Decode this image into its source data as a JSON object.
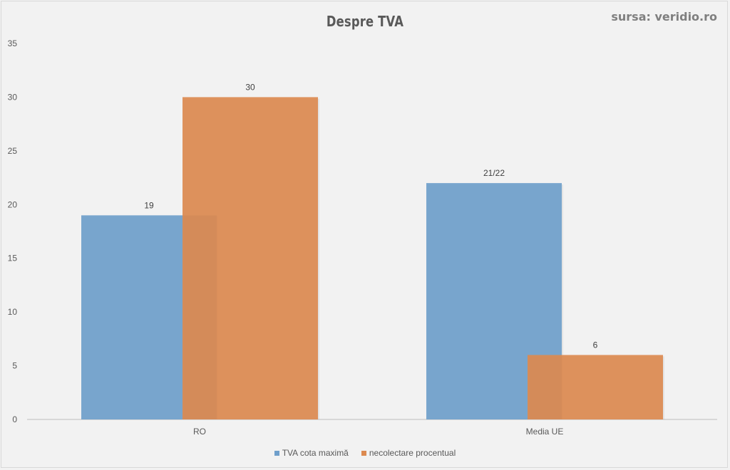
{
  "chart_data": {
    "type": "bar",
    "title": "Despre TVA",
    "source": "sursa: veridio.ro",
    "categories": [
      "RO",
      "Media UE"
    ],
    "series": [
      {
        "name": "TVA cota maximă",
        "values": [
          19,
          22
        ],
        "labels": [
          "19",
          "21/22"
        ],
        "color": "#6f9fcb"
      },
      {
        "name": "necolectare procentual",
        "values": [
          30,
          6
        ],
        "labels": [
          "30",
          "6"
        ],
        "color": "#dc8a50"
      }
    ],
    "ylim": [
      0,
      35
    ],
    "yticks": [
      0,
      5,
      10,
      15,
      20,
      25,
      30,
      35
    ],
    "grid": false,
    "legend_position": "bottom"
  }
}
